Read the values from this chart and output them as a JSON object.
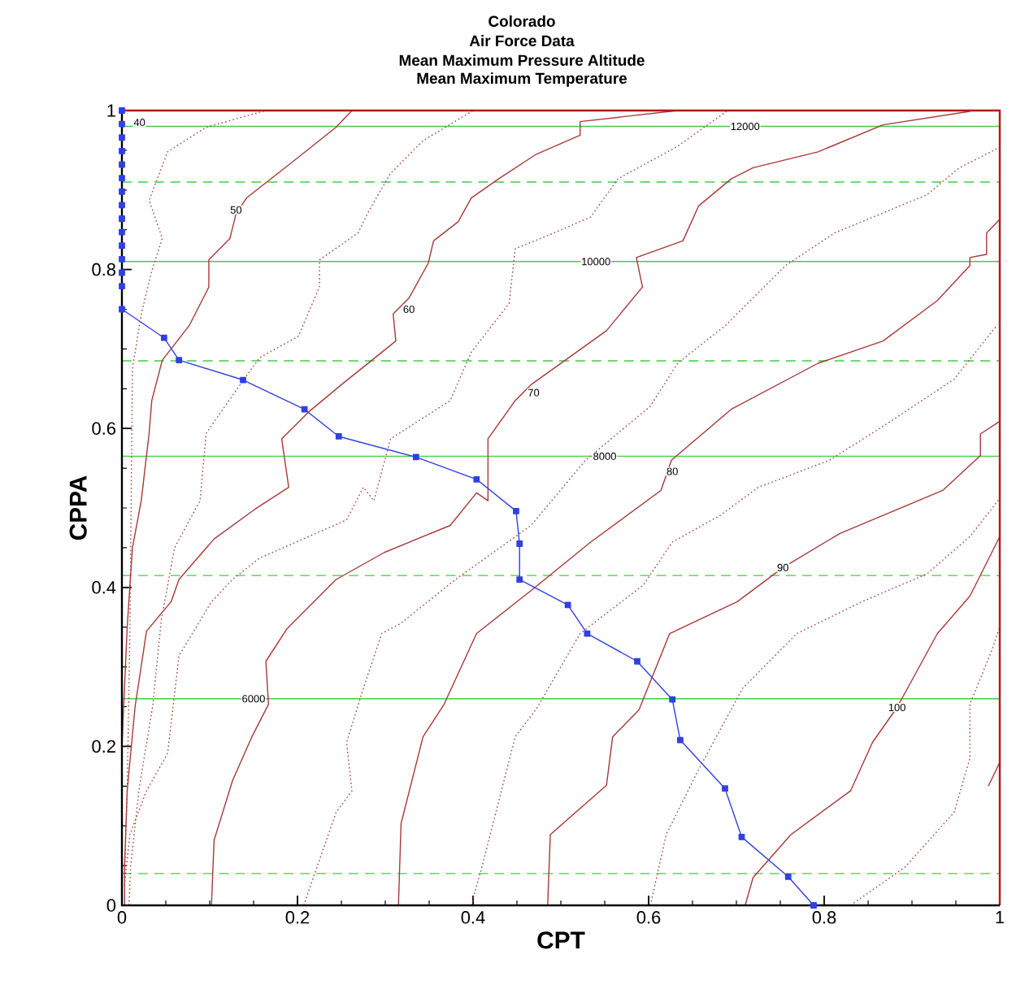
{
  "chart_data": {
    "type": "line",
    "title": "Colorado",
    "subtitle": "Air Force Data",
    "xlabel": "CPT",
    "ylabel": "CPPA",
    "xlim": [
      0,
      1
    ],
    "ylim": [
      0,
      1
    ],
    "xticks": [
      0,
      0.2,
      0.4,
      0.6,
      0.8,
      1
    ],
    "yticks": [
      0,
      0.2,
      0.4,
      0.6,
      0.8,
      1
    ],
    "grid": false,
    "series": [
      {
        "color": "#a83838",
        "line_style": "solid",
        "marker": "none",
        "x": [
          0,
          0.002,
          0.006,
          0.012,
          0.022,
          0.031,
          0.034,
          0.046,
          0.077,
          0.099,
          0.099,
          0.123,
          0.13,
          0.142,
          0.194,
          0.244,
          0.262
        ],
        "values": [
          0.2,
          0.25,
          0.35,
          0.45,
          0.509,
          0.594,
          0.635,
          0.686,
          0.73,
          0.778,
          0.812,
          0.839,
          0.87,
          0.89,
          0.935,
          0.979,
          1.0
        ]
      },
      {
        "color": "#a83838",
        "line_style": "solid",
        "marker": "none",
        "x": [
          0.003,
          0.003,
          0.006,
          0.015,
          0.028,
          0.056,
          0.065,
          0.105,
          0.151,
          0.19,
          0.182,
          0.213,
          0.25,
          0.312,
          0.309,
          0.327,
          0.349,
          0.355,
          0.383,
          0.398,
          0.429,
          0.472,
          0.522,
          0.522,
          0.633
        ],
        "values": [
          0.0,
          0.05,
          0.144,
          0.25,
          0.345,
          0.382,
          0.41,
          0.461,
          0.498,
          0.526,
          0.587,
          0.621,
          0.655,
          0.71,
          0.744,
          0.764,
          0.808,
          0.836,
          0.86,
          0.89,
          0.914,
          0.945,
          0.969,
          0.986,
          1.0
        ]
      },
      {
        "color": "#a83838",
        "line_style": "solid",
        "marker": "none",
        "x": [
          0.102,
          0.105,
          0.126,
          0.148,
          0.167,
          0.164,
          0.188,
          0.244,
          0.299,
          0.374,
          0.404,
          0.417,
          0.417,
          0.448,
          0.466,
          0.509,
          0.552,
          0.593,
          0.586,
          0.639,
          0.657,
          0.694,
          0.719,
          0.793,
          0.867,
          0.966
        ],
        "values": [
          0.0,
          0.082,
          0.157,
          0.212,
          0.253,
          0.307,
          0.348,
          0.41,
          0.444,
          0.478,
          0.519,
          0.509,
          0.587,
          0.635,
          0.655,
          0.689,
          0.723,
          0.778,
          0.815,
          0.836,
          0.88,
          0.914,
          0.928,
          0.948,
          0.982,
          0.999
        ]
      },
      {
        "color": "#a83838",
        "line_style": "solid",
        "marker": "none",
        "x": [
          0.315,
          0.318,
          0.343,
          0.367,
          0.404,
          0.466,
          0.534,
          0.614,
          0.626,
          0.694,
          0.793,
          0.867,
          0.929,
          0.966,
          0.966,
          0.985,
          0.985,
          1.0
        ],
        "values": [
          0.0,
          0.103,
          0.212,
          0.253,
          0.342,
          0.396,
          0.457,
          0.522,
          0.56,
          0.624,
          0.682,
          0.71,
          0.761,
          0.805,
          0.815,
          0.819,
          0.846,
          0.863
        ]
      },
      {
        "color": "#a83838",
        "line_style": "solid",
        "marker": "none",
        "x": [
          0.485,
          0.488,
          0.552,
          0.559,
          0.589,
          0.624,
          0.701,
          0.753,
          0.818,
          0.935,
          0.978,
          0.978,
          1.0
        ],
        "values": [
          0.0,
          0.089,
          0.151,
          0.212,
          0.246,
          0.342,
          0.382,
          0.425,
          0.468,
          0.522,
          0.566,
          0.593,
          0.609
        ]
      },
      {
        "color": "#a83838",
        "line_style": "solid",
        "marker": "none",
        "x": [
          0.71,
          0.719,
          0.762,
          0.83,
          0.855,
          0.883,
          0.929,
          0.966,
          1.0
        ],
        "values": [
          0.0,
          0.035,
          0.089,
          0.144,
          0.205,
          0.249,
          0.342,
          0.389,
          0.464
        ]
      },
      {
        "color": "#a83838",
        "line_style": "solid",
        "marker": "none",
        "x": [
          0.987,
          1.0
        ],
        "values": [
          0.15,
          0.18
        ]
      },
      {
        "color": "#a84040",
        "line_style": "dotted",
        "marker": "none",
        "x": [
          0.003,
          0.006,
          0.009,
          0.012,
          0.022,
          0.034,
          0.046,
          0.031,
          0.052,
          0.096,
          0.164
        ],
        "values": [
          0.035,
          0.144,
          0.335,
          0.675,
          0.744,
          0.798,
          0.839,
          0.887,
          0.948,
          0.979,
          1.0
        ]
      },
      {
        "color": "#a84040",
        "line_style": "dotted",
        "marker": "none",
        "x": [
          0.008,
          0.01,
          0.02,
          0.035,
          0.045,
          0.06,
          0.089,
          0.096,
          0.139,
          0.157,
          0.201,
          0.225,
          0.225,
          0.269,
          0.281,
          0.306,
          0.343,
          0.4
        ],
        "values": [
          0.0,
          0.05,
          0.15,
          0.25,
          0.36,
          0.45,
          0.509,
          0.594,
          0.662,
          0.689,
          0.716,
          0.778,
          0.812,
          0.846,
          0.873,
          0.921,
          0.962,
          1.0
        ]
      },
      {
        "color": "#a84040",
        "line_style": "dotted",
        "marker": "none",
        "x": [
          0.003,
          0.009,
          0.028,
          0.052,
          0.065,
          0.102,
          0.126,
          0.157,
          0.256,
          0.275,
          0.287,
          0.306,
          0.374,
          0.398,
          0.441,
          0.448,
          0.49,
          0.534,
          0.565,
          0.633,
          0.69
        ],
        "values": [
          0.025,
          0.089,
          0.144,
          0.191,
          0.314,
          0.382,
          0.41,
          0.437,
          0.485,
          0.526,
          0.509,
          0.587,
          0.635,
          0.696,
          0.757,
          0.826,
          0.845,
          0.866,
          0.914,
          0.955,
          1.0
        ]
      },
      {
        "color": "#a84040",
        "line_style": "dotted",
        "marker": "none",
        "x": [
          0.207,
          0.244,
          0.262,
          0.256,
          0.275,
          0.296,
          0.318,
          0.38,
          0.466,
          0.528,
          0.602,
          0.633,
          0.688,
          0.756,
          0.812,
          0.917,
          0.954,
          0.997
        ],
        "values": [
          0.0,
          0.117,
          0.144,
          0.205,
          0.273,
          0.342,
          0.355,
          0.41,
          0.478,
          0.56,
          0.628,
          0.682,
          0.73,
          0.805,
          0.846,
          0.894,
          0.928,
          0.952
        ]
      },
      {
        "color": "#a84040",
        "line_style": "dotted",
        "marker": "none",
        "x": [
          0.398,
          0.41,
          0.448,
          0.472,
          0.522,
          0.594,
          0.627,
          0.682,
          0.725,
          0.806,
          0.873,
          0.948,
          0.997
        ],
        "values": [
          0.0,
          0.048,
          0.212,
          0.247,
          0.342,
          0.403,
          0.457,
          0.491,
          0.526,
          0.56,
          0.607,
          0.662,
          0.73
        ]
      },
      {
        "color": "#a84040",
        "line_style": "dotted",
        "marker": "none",
        "x": [
          0.602,
          0.62,
          0.657,
          0.707,
          0.769,
          0.843,
          0.917,
          0.966,
          1.0
        ],
        "values": [
          0.0,
          0.089,
          0.171,
          0.273,
          0.342,
          0.382,
          0.417,
          0.464,
          0.512
        ]
      },
      {
        "color": "#a84040",
        "line_style": "dotted",
        "marker": "none",
        "x": [
          0.83,
          0.892,
          0.948,
          0.966,
          0.966,
          0.991,
          1.0
        ],
        "values": [
          0.0,
          0.048,
          0.117,
          0.185,
          0.253,
          0.321,
          0.35
        ]
      },
      {
        "color": "#3040e0",
        "line_style": "solid",
        "marker": "square",
        "x": [
          0,
          0,
          0,
          0,
          0,
          0,
          0,
          0,
          0,
          0,
          0,
          0,
          0,
          0,
          0,
          0.048,
          0.065,
          0.138,
          0.208,
          0.247,
          0.335,
          0.404,
          0.449,
          0.453,
          0.453,
          0.508,
          0.53,
          0.587,
          0.627,
          0.636,
          0.687,
          0.706,
          0.759,
          0.788
        ],
        "values": [
          1.0,
          0.983,
          0.966,
          0.949,
          0.932,
          0.915,
          0.898,
          0.881,
          0.864,
          0.847,
          0.83,
          0.813,
          0.796,
          0.779,
          0.75,
          0.714,
          0.686,
          0.661,
          0.624,
          0.59,
          0.564,
          0.536,
          0.496,
          0.455,
          0.41,
          0.378,
          0.342,
          0.307,
          0.259,
          0.208,
          0.147,
          0.086,
          0.036,
          0.0
        ]
      }
    ],
    "ref_lines": [
      {
        "axis": "y",
        "value": 0.04,
        "color": "#44cc44",
        "line_style": "dashed"
      },
      {
        "axis": "y",
        "value": 0.26,
        "color": "#44cc44",
        "line_style": "solid"
      },
      {
        "axis": "y",
        "value": 0.415,
        "color": "#44cc44",
        "line_style": "dashed"
      },
      {
        "axis": "y",
        "value": 0.565,
        "color": "#44cc44",
        "line_style": "solid"
      },
      {
        "axis": "y",
        "value": 0.685,
        "color": "#44cc44",
        "line_style": "dashed"
      },
      {
        "axis": "y",
        "value": 0.81,
        "color": "#44cc44",
        "line_style": "solid"
      },
      {
        "axis": "y",
        "value": 0.91,
        "color": "#44cc44",
        "line_style": "dashed"
      },
      {
        "axis": "y",
        "value": 0.98,
        "color": "#44cc44",
        "line_style": "solid"
      }
    ],
    "annotations": [
      "Mean Maximum Pressure Altitude",
      "Mean Maximum Temperature",
      {
        "text": "40",
        "x": 0.02,
        "y": 0.985
      },
      {
        "text": "50",
        "x": 0.13,
        "y": 0.875
      },
      {
        "text": "60",
        "x": 0.327,
        "y": 0.75
      },
      {
        "text": "70",
        "x": 0.469,
        "y": 0.645
      },
      {
        "text": "80",
        "x": 0.627,
        "y": 0.546
      },
      {
        "text": "90",
        "x": 0.753,
        "y": 0.425
      },
      {
        "text": "100",
        "x": 0.883,
        "y": 0.249
      },
      {
        "text": "6000",
        "x": 0.15,
        "y": 0.26
      },
      {
        "text": "8000",
        "x": 0.55,
        "y": 0.565
      },
      {
        "text": "10000",
        "x": 0.54,
        "y": 0.81
      },
      {
        "text": "12000",
        "x": 0.71,
        "y": 0.98
      }
    ]
  }
}
